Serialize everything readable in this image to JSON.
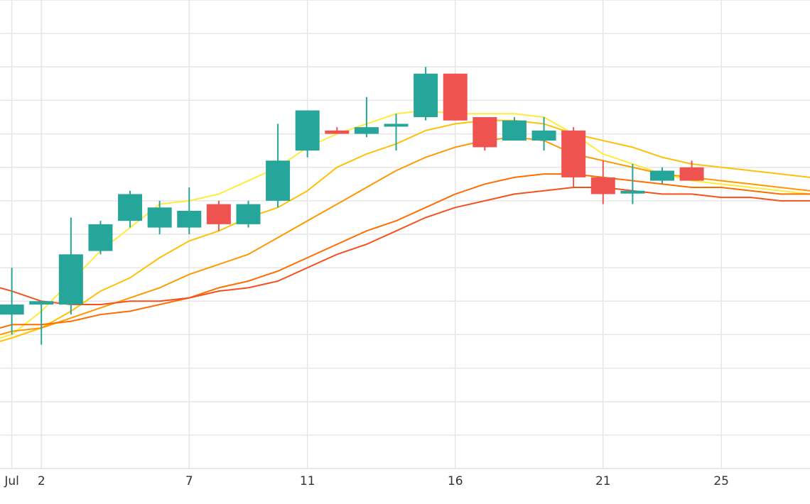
{
  "chart_data": {
    "type": "candlestick",
    "title": "",
    "xlabel": "",
    "ylabel": "",
    "grid": true,
    "legend": "none",
    "x_ticks": [
      {
        "label": "Jul",
        "day": 1
      },
      {
        "label": "2",
        "day": 2
      },
      {
        "label": "7",
        "day": 7
      },
      {
        "label": "11",
        "day": 11
      },
      {
        "label": "16",
        "day": 16
      },
      {
        "label": "21",
        "day": 21
      },
      {
        "label": "25",
        "day": 25
      }
    ],
    "xlim": [
      0.6,
      28.0
    ],
    "ylim": [
      0,
      14
    ],
    "colors": {
      "up": "#26a69a",
      "down": "#ef5350",
      "grid": "#e6e6e6",
      "ma": [
        "#ffeb3b",
        "#ffc107",
        "#ff9800",
        "#ff6d00",
        "#f4511e"
      ]
    },
    "candles": [
      {
        "day": 1,
        "open": 4.6,
        "high": 6.0,
        "low": 4.0,
        "close": 4.9
      },
      {
        "day": 2,
        "open": 4.9,
        "high": 5.0,
        "low": 3.7,
        "close": 5.0
      },
      {
        "day": 3,
        "open": 4.9,
        "high": 7.5,
        "low": 4.6,
        "close": 6.4
      },
      {
        "day": 4,
        "open": 6.5,
        "high": 7.4,
        "low": 6.4,
        "close": 7.3
      },
      {
        "day": 5,
        "open": 7.4,
        "high": 8.3,
        "low": 7.2,
        "close": 8.2
      },
      {
        "day": 6,
        "open": 7.2,
        "high": 8.0,
        "low": 7.0,
        "close": 7.8
      },
      {
        "day": 7,
        "open": 7.2,
        "high": 8.4,
        "low": 7.0,
        "close": 7.7
      },
      {
        "day": 8,
        "open": 7.9,
        "high": 8.0,
        "low": 7.1,
        "close": 7.3
      },
      {
        "day": 9,
        "open": 7.3,
        "high": 8.0,
        "low": 7.2,
        "close": 7.9
      },
      {
        "day": 10,
        "open": 8.0,
        "high": 10.3,
        "low": 7.8,
        "close": 9.2
      },
      {
        "day": 11,
        "open": 9.5,
        "high": 10.7,
        "low": 9.3,
        "close": 10.7
      },
      {
        "day": 12,
        "open": 10.1,
        "high": 10.2,
        "low": 10.0,
        "close": 10.0
      },
      {
        "day": 13,
        "open": 10.0,
        "high": 11.1,
        "low": 9.9,
        "close": 10.2
      },
      {
        "day": 14,
        "open": 10.3,
        "high": 10.6,
        "low": 9.5,
        "close": 10.3
      },
      {
        "day": 15,
        "open": 10.5,
        "high": 12.0,
        "low": 10.4,
        "close": 11.8
      },
      {
        "day": 16,
        "open": 11.8,
        "high": 11.8,
        "low": 10.4,
        "close": 10.4
      },
      {
        "day": 17,
        "open": 10.5,
        "high": 10.5,
        "low": 9.5,
        "close": 9.6
      },
      {
        "day": 18,
        "open": 9.8,
        "high": 10.5,
        "low": 9.8,
        "close": 10.4
      },
      {
        "day": 19,
        "open": 9.8,
        "high": 10.5,
        "low": 9.5,
        "close": 10.1
      },
      {
        "day": 20,
        "open": 10.1,
        "high": 10.2,
        "low": 8.4,
        "close": 8.7
      },
      {
        "day": 21,
        "open": 8.7,
        "high": 9.2,
        "low": 7.9,
        "close": 8.2
      },
      {
        "day": 22,
        "open": 8.3,
        "high": 9.1,
        "low": 7.9,
        "close": 8.3
      },
      {
        "day": 23,
        "open": 8.6,
        "high": 9.0,
        "low": 8.5,
        "close": 8.9
      },
      {
        "day": 24,
        "open": 9.0,
        "high": 9.2,
        "low": 8.7,
        "close": 8.6
      }
    ],
    "series": [
      {
        "color": "#ffeb3b",
        "x": [
          0.6,
          1,
          2,
          3,
          4,
          5,
          6,
          7,
          8,
          9,
          10,
          11,
          12,
          13,
          14,
          15,
          16,
          17,
          18,
          19,
          20,
          21,
          22,
          23,
          24,
          25,
          26,
          27,
          28
        ],
        "y": [
          3.9,
          4.0,
          4.7,
          5.6,
          6.5,
          7.2,
          7.9,
          8.0,
          8.2,
          8.6,
          9.0,
          9.6,
          10.0,
          10.3,
          10.6,
          10.7,
          10.6,
          10.6,
          10.6,
          10.5,
          10.0,
          9.4,
          9.1,
          8.8,
          8.6,
          8.5,
          8.4,
          8.3,
          8.2
        ]
      },
      {
        "color": "#ffc107",
        "x": [
          0.6,
          1,
          2,
          3,
          4,
          5,
          6,
          7,
          8,
          9,
          10,
          11,
          12,
          13,
          14,
          15,
          16,
          17,
          18,
          19,
          20,
          21,
          22,
          23,
          24,
          25,
          26,
          27,
          28
        ],
        "y": [
          3.8,
          3.9,
          4.2,
          4.7,
          5.3,
          5.7,
          6.3,
          6.8,
          7.1,
          7.5,
          7.8,
          8.3,
          9.0,
          9.4,
          9.7,
          10.1,
          10.3,
          10.4,
          10.4,
          10.3,
          10.0,
          9.8,
          9.6,
          9.3,
          9.1,
          9.0,
          8.9,
          8.8,
          8.7
        ]
      },
      {
        "color": "#ff9800",
        "x": [
          0.6,
          1,
          2,
          3,
          4,
          5,
          6,
          7,
          8,
          9,
          10,
          11,
          12,
          13,
          14,
          15,
          16,
          17,
          18,
          19,
          20,
          21,
          22,
          23,
          24,
          25,
          26,
          27,
          28
        ],
        "y": [
          4.0,
          4.1,
          4.2,
          4.5,
          4.8,
          5.1,
          5.4,
          5.8,
          6.1,
          6.4,
          6.9,
          7.4,
          7.9,
          8.4,
          8.9,
          9.3,
          9.6,
          9.8,
          9.9,
          9.8,
          9.4,
          9.2,
          9.0,
          8.8,
          8.7,
          8.6,
          8.5,
          8.4,
          8.3
        ]
      },
      {
        "color": "#ff6d00",
        "x": [
          0.6,
          1,
          2,
          3,
          4,
          5,
          6,
          7,
          8,
          9,
          10,
          11,
          12,
          13,
          14,
          15,
          16,
          17,
          18,
          19,
          20,
          21,
          22,
          23,
          24,
          25,
          26,
          27,
          28
        ],
        "y": [
          4.2,
          4.3,
          4.3,
          4.4,
          4.6,
          4.7,
          4.9,
          5.1,
          5.4,
          5.6,
          5.9,
          6.3,
          6.7,
          7.1,
          7.4,
          7.8,
          8.2,
          8.5,
          8.7,
          8.8,
          8.8,
          8.7,
          8.6,
          8.5,
          8.4,
          8.4,
          8.3,
          8.2,
          8.2
        ]
      },
      {
        "color": "#f4511e",
        "x": [
          0.6,
          1,
          2,
          3,
          4,
          5,
          6,
          7,
          8,
          9,
          10,
          11,
          12,
          13,
          14,
          15,
          16,
          17,
          18,
          19,
          20,
          21,
          22,
          23,
          24,
          25,
          26,
          27,
          28
        ],
        "y": [
          5.4,
          5.3,
          5.0,
          4.9,
          4.9,
          5.0,
          5.0,
          5.1,
          5.3,
          5.4,
          5.6,
          6.0,
          6.4,
          6.7,
          7.1,
          7.5,
          7.8,
          8.0,
          8.2,
          8.3,
          8.4,
          8.4,
          8.3,
          8.2,
          8.2,
          8.1,
          8.1,
          8.0,
          8.0
        ]
      }
    ]
  }
}
